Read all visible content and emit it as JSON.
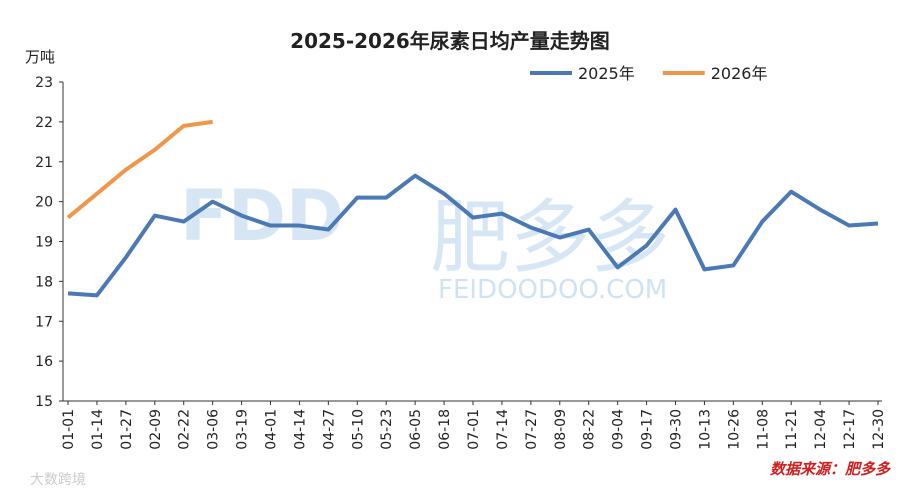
{
  "chart_data": {
    "type": "line",
    "title": "2025-2026年尿素日均产量走势图",
    "y_label": "万吨",
    "categories": [
      "01-01",
      "01-14",
      "01-27",
      "02-09",
      "02-22",
      "03-06",
      "03-19",
      "04-01",
      "04-14",
      "04-27",
      "05-10",
      "05-23",
      "06-05",
      "06-18",
      "07-01",
      "07-14",
      "07-27",
      "08-09",
      "08-22",
      "09-04",
      "09-17",
      "09-30",
      "10-13",
      "10-26",
      "11-08",
      "11-21",
      "12-04",
      "12-17",
      "12-30"
    ],
    "series": [
      {
        "name": "2025年",
        "color": "#4a79b5",
        "values": [
          17.7,
          17.65,
          18.6,
          19.65,
          19.5,
          20.0,
          19.65,
          19.4,
          19.4,
          19.3,
          20.1,
          20.1,
          20.65,
          20.2,
          19.6,
          19.7,
          19.35,
          19.1,
          19.3,
          18.35,
          18.9,
          19.8,
          18.3,
          18.4,
          19.5,
          20.25,
          19.8,
          19.4,
          19.45
        ]
      },
      {
        "name": "2026年",
        "color": "#f0964a",
        "values": [
          19.6,
          20.2,
          20.8,
          21.3,
          21.9,
          22.0,
          null,
          null,
          null,
          null,
          null,
          null,
          null,
          null,
          null,
          null,
          null,
          null,
          null,
          null,
          null,
          null,
          null,
          null,
          null,
          null,
          null,
          null,
          null
        ]
      }
    ],
    "ylim": [
      15,
      23
    ],
    "yticks": [
      15,
      16,
      17,
      18,
      19,
      20,
      21,
      22,
      23
    ],
    "legend": "top-right",
    "source": "数据来源：肥多多",
    "watermarks": [
      "FDD",
      "肥多多",
      "FEIDOODOO.COM",
      "大数跨境"
    ]
  }
}
